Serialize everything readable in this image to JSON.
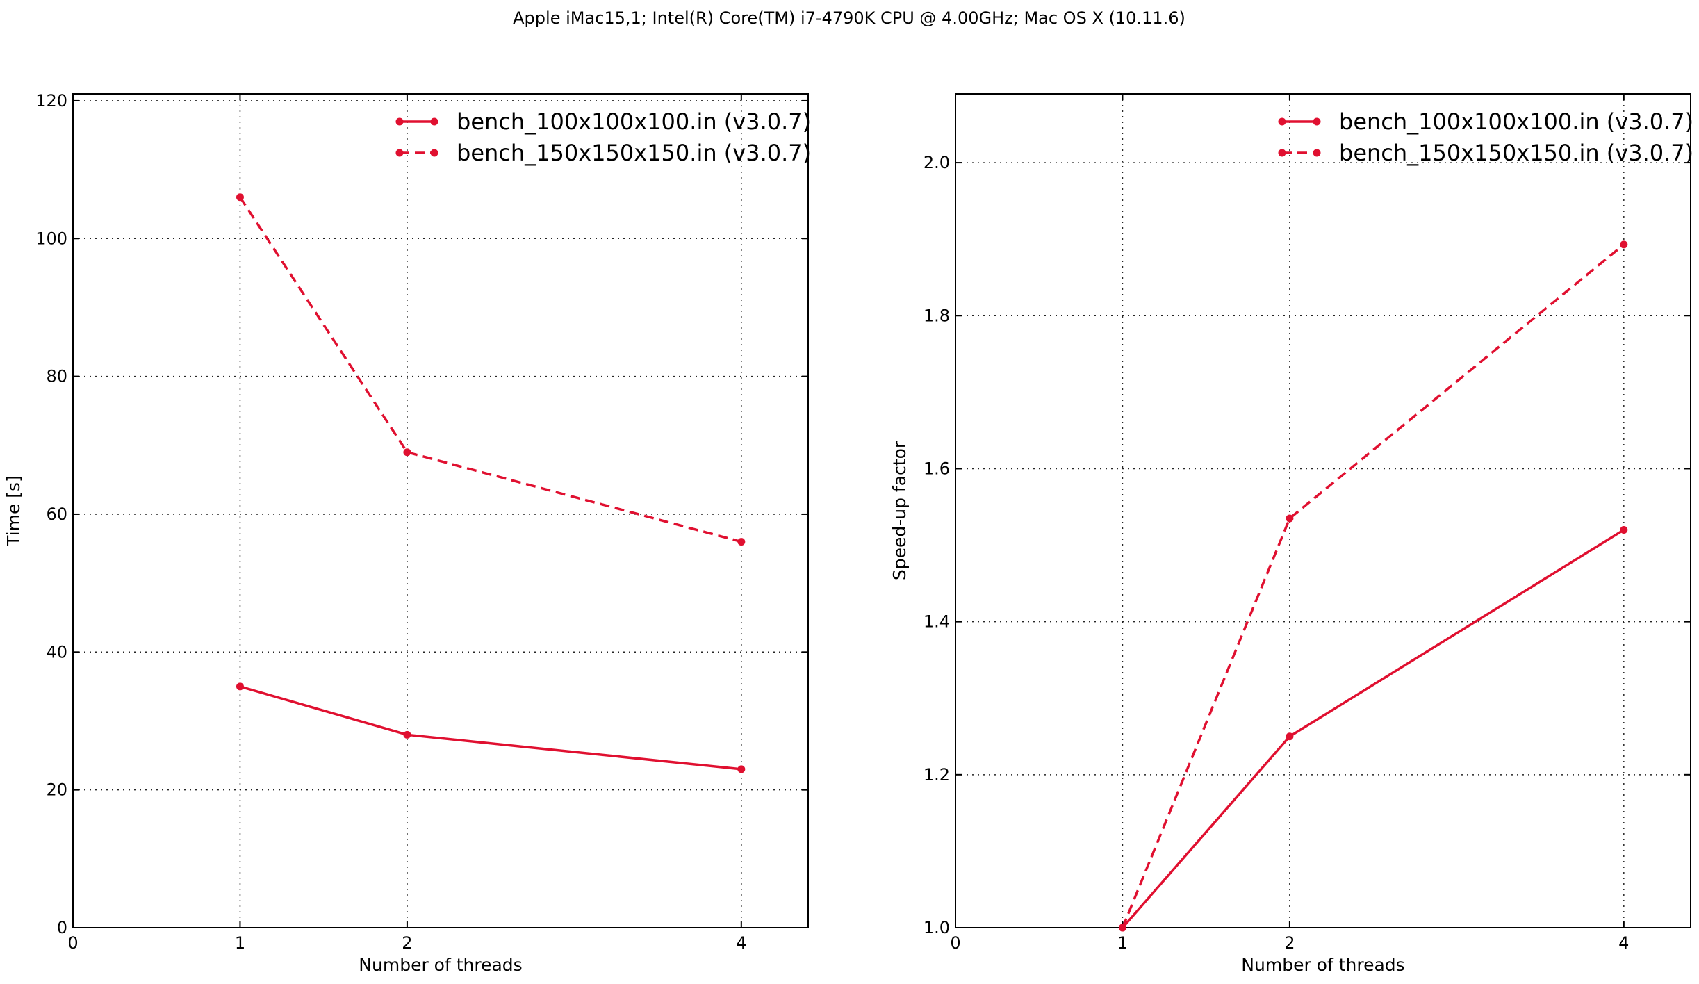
{
  "figure": {
    "suptitle": "Apple iMac15,1; Intel(R) Core(TM) i7-4790K CPU @ 4.00GHz; Mac OS X (10.11.6)"
  },
  "colors": {
    "series": "#e01030",
    "background": "#ffffff",
    "axes": "#000000"
  },
  "chart_data": [
    {
      "type": "line",
      "title": "",
      "xlabel": "Number of threads",
      "ylabel": "Time [s]",
      "xlim": [
        0,
        4.4
      ],
      "ylim": [
        0,
        121
      ],
      "xticks": [
        0,
        1,
        2,
        4
      ],
      "yticks": [
        0,
        20,
        40,
        60,
        80,
        100,
        120
      ],
      "grid": true,
      "legend_position": "top-right",
      "series": [
        {
          "name": "bench_100x100x100.in (v3.0.7)",
          "linestyle": "solid",
          "x": [
            1,
            2,
            4
          ],
          "y": [
            35,
            28,
            23
          ]
        },
        {
          "name": "bench_150x150x150.in (v3.0.7)",
          "linestyle": "dashed",
          "x": [
            1,
            2,
            4
          ],
          "y": [
            106,
            69,
            56
          ]
        }
      ]
    },
    {
      "type": "line",
      "title": "",
      "xlabel": "Number of threads",
      "ylabel": "Speed-up factor",
      "xlim": [
        0,
        4.4
      ],
      "ylim": [
        1.0,
        2.09
      ],
      "xticks": [
        0,
        1,
        2,
        4
      ],
      "yticks": [
        1.0,
        1.2,
        1.4,
        1.6,
        1.8,
        2.0
      ],
      "grid": true,
      "legend_position": "top-right",
      "series": [
        {
          "name": "bench_100x100x100.in (v3.0.7)",
          "linestyle": "solid",
          "x": [
            1,
            2,
            4
          ],
          "y": [
            1.0,
            1.25,
            1.52
          ]
        },
        {
          "name": "bench_150x150x150.in (v3.0.7)",
          "linestyle": "dashed",
          "x": [
            1,
            2,
            4
          ],
          "y": [
            1.0,
            1.535,
            1.893
          ]
        }
      ]
    }
  ]
}
